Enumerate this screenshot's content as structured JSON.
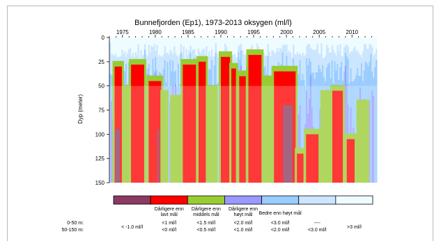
{
  "chart_data": {
    "type": "heatmap",
    "title": "Bunnefjorden (Ep1), 1973-2013 oksygen (ml/l)",
    "ylabel": "Dyp (meter)",
    "xlabel": "",
    "x_ticks": [
      1975,
      1980,
      1985,
      1990,
      1995,
      2000,
      2005,
      2010
    ],
    "xlim": [
      1973,
      2013.8
    ],
    "y_ticks": [
      0,
      25,
      50,
      75,
      100,
      125,
      150
    ],
    "ylim": [
      0,
      150
    ],
    "y_reversed": true,
    "grid": false,
    "highlight_depth_band": [
      50,
      150
    ],
    "color_classes": [
      {
        "color": "#8b3a62",
        "label": "",
        "range_0_50": "< -1.0 ml/l",
        "range_50_150": ""
      },
      {
        "color": "#ff0000",
        "label": "Dårligere enn lavt mål",
        "range_0_50": "<1 ml/l",
        "range_50_150": "<0 ml/l"
      },
      {
        "color": "#99cc33",
        "label": "Dårligere enn middels mål",
        "range_0_50": "<1.5 ml/l",
        "range_50_150": "<0.5 ml/l"
      },
      {
        "color": "#9999ff",
        "label": "Dårligere enn høyt mål",
        "range_0_50": "<2.0 ml/l",
        "range_50_150": "<1.0 ml/l"
      },
      {
        "color": "#99ccff",
        "label": "",
        "range_0_50": "<3.0 ml/l",
        "range_50_150": "<2.0 ml/l"
      },
      {
        "color": "#cce6ff",
        "label": "",
        "range_0_50": "----",
        "range_50_150": "<3.0 ml/l"
      },
      {
        "color": "#eefcff",
        "label": "",
        "range_0_50": ">3 ml/l",
        "range_50_150": ""
      }
    ],
    "bedre_label": "Bedre enn høyt mål",
    "row_labels": {
      "shallow": "0-50 m:",
      "deep": "50-150 m:"
    },
    "episodes": [
      {
        "start": 1973.8,
        "end": 1974.9,
        "depth": 30,
        "cls": 1
      },
      {
        "start": 1975.4,
        "end": 1976.0,
        "depth": 55,
        "cls": 2
      },
      {
        "start": 1976.3,
        "end": 1978.3,
        "depth": 28,
        "cls": 1
      },
      {
        "start": 1979.0,
        "end": 1980.9,
        "depth": 45,
        "cls": 1
      },
      {
        "start": 1981.1,
        "end": 1981.7,
        "depth": 60,
        "cls": 2
      },
      {
        "start": 1982.6,
        "end": 1983.6,
        "depth": 65,
        "cls": 2
      },
      {
        "start": 1984.2,
        "end": 1986.2,
        "depth": 28,
        "cls": 1
      },
      {
        "start": 1986.6,
        "end": 1987.7,
        "depth": 25,
        "cls": 1
      },
      {
        "start": 1988.2,
        "end": 1989.2,
        "depth": 55,
        "cls": 2
      },
      {
        "start": 1990.0,
        "end": 1991.4,
        "depth": 20,
        "cls": 1
      },
      {
        "start": 1991.6,
        "end": 1992.3,
        "depth": 32,
        "cls": 1
      },
      {
        "start": 1992.8,
        "end": 1993.8,
        "depth": 40,
        "cls": 1
      },
      {
        "start": 1994.2,
        "end": 1996.2,
        "depth": 18,
        "cls": 1
      },
      {
        "start": 1996.7,
        "end": 1997.5,
        "depth": 45,
        "cls": 2
      },
      {
        "start": 1998.1,
        "end": 2001.4,
        "depth": 35,
        "cls": 1
      },
      {
        "start": 2001.6,
        "end": 2002.6,
        "depth": 120,
        "cls": 1
      },
      {
        "start": 2003.0,
        "end": 2004.9,
        "depth": 100,
        "cls": 1
      },
      {
        "start": 2005.5,
        "end": 2006.6,
        "depth": 60,
        "cls": 2
      },
      {
        "start": 2007.0,
        "end": 2008.6,
        "depth": 55,
        "cls": 1
      },
      {
        "start": 2009.2,
        "end": 2010.4,
        "depth": 105,
        "cls": 1
      },
      {
        "start": 2011.0,
        "end": 2012.3,
        "depth": 70,
        "cls": 2
      }
    ],
    "anoxic_episodes": [
      {
        "start": 1973.9,
        "end": 1974.6,
        "depth": 95
      },
      {
        "start": 1980.3,
        "end": 1980.6,
        "depth": 95
      },
      {
        "start": 1999.5,
        "end": 2000.9,
        "depth": 70
      }
    ]
  }
}
